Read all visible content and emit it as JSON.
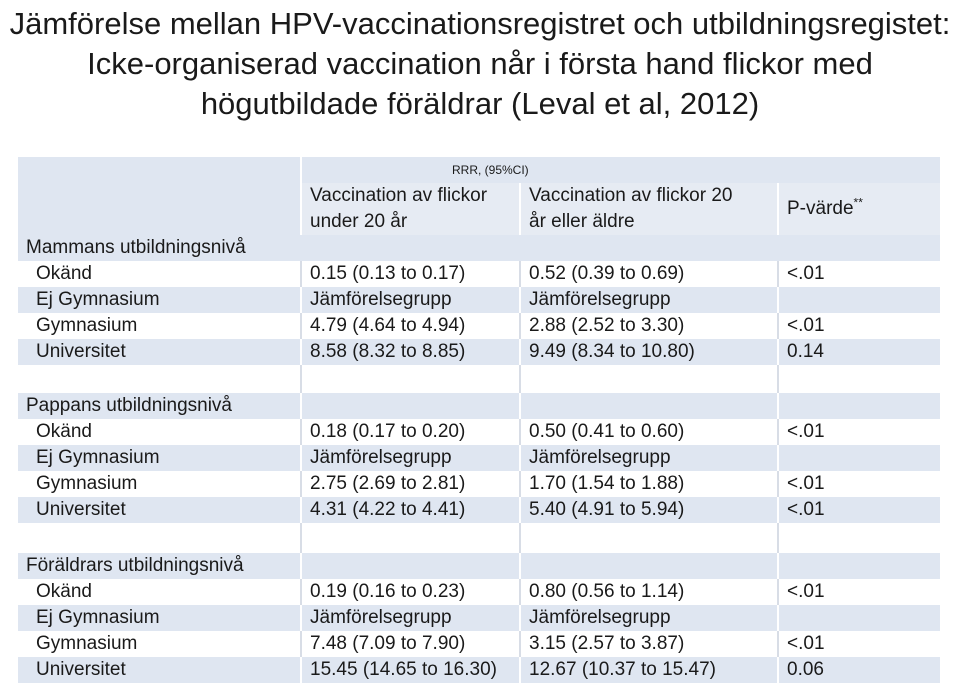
{
  "title": {
    "line1": "Jämförelse mellan HPV-vaccinationsregistret och utbildningsregistet:",
    "line2": "Icke-organiserad vaccination når i första hand flickor med",
    "line3": "högutbildade föräldrar (Leval et al, 2012)"
  },
  "table": {
    "rrr_label": "RRR, (95%CI)",
    "col_under20": "Vaccination av flickor under 20 år",
    "col_under20_l1": "Vaccination av flickor",
    "col_under20_l2": "under 20 år",
    "col_over20_l1": "Vaccination av flickor 20",
    "col_over20_l2": "år eller äldre",
    "col_p": "P-värde",
    "col_p_sup": "**",
    "sections": [
      {
        "heading": "Mammans utbildningsnivå",
        "rows": [
          {
            "label": "Okänd",
            "u20": "0.15 (0.13 to 0.17)",
            "o20": "0.52 (0.39 to 0.69)",
            "p": "<.01"
          },
          {
            "label": "Ej Gymnasium",
            "u20": "Jämförelsegrupp",
            "o20": "Jämförelsegrupp",
            "p": ""
          },
          {
            "label": "Gymnasium",
            "u20": "4.79 (4.64 to 4.94)",
            "o20": "2.88 (2.52 to 3.30)",
            "p": "<.01"
          },
          {
            "label": "Universitet",
            "u20": "8.58 (8.32 to 8.85)",
            "o20": "9.49 (8.34 to 10.80)",
            "p": "0.14"
          }
        ]
      },
      {
        "heading": "Pappans utbildningsnivå",
        "rows": [
          {
            "label": "Okänd",
            "u20": "0.18 (0.17 to 0.20)",
            "o20": "0.50 (0.41 to 0.60)",
            "p": "<.01"
          },
          {
            "label": "Ej Gymnasium",
            "u20": "Jämförelsegrupp",
            "o20": "Jämförelsegrupp",
            "p": ""
          },
          {
            "label": "Gymnasium",
            "u20": "2.75 (2.69 to 2.81)",
            "o20": "1.70 (1.54 to 1.88)",
            "p": "<.01"
          },
          {
            "label": "Universitet",
            "u20": "4.31 (4.22 to 4.41)",
            "o20": "5.40 (4.91 to 5.94)",
            "p": "<.01"
          }
        ]
      },
      {
        "heading": "Föräldrars utbildningsnivå",
        "rows": [
          {
            "label": "Okänd",
            "u20": "0.19 (0.16 to 0.23)",
            "o20": "0.80 (0.56 to 1.14)",
            "p": "<.01"
          },
          {
            "label": "Ej Gymnasium",
            "u20": "Jämförelsegrupp",
            "o20": "Jämförelsegrupp",
            "p": ""
          },
          {
            "label": "Gymnasium",
            "u20": "7.48 (7.09 to 7.90)",
            "o20": "3.15 (2.57 to 3.87)",
            "p": "<.01"
          },
          {
            "label": "Universitet",
            "u20": "15.45 (14.65 to 16.30)",
            "o20": "12.67 (10.37 to 15.47)",
            "p": "0.06"
          }
        ]
      }
    ]
  },
  "colors": {
    "band": "#dfe6f1",
    "header_band": "#e6ebf3",
    "label_blue": "#2b5797",
    "text": "#1a1a1a"
  }
}
